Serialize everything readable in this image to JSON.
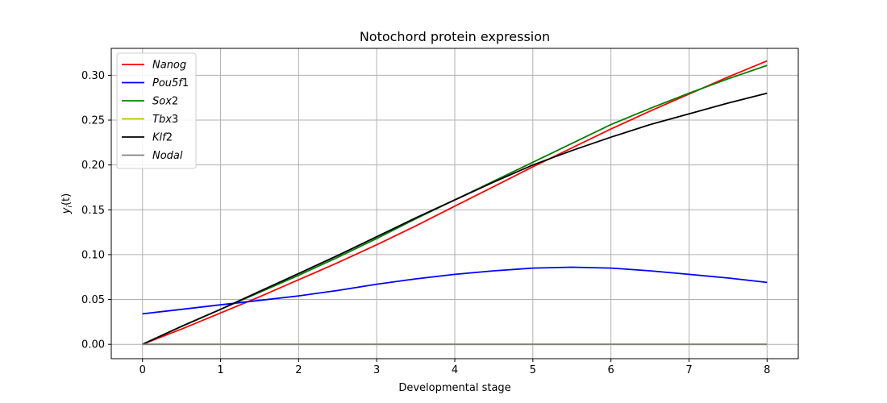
{
  "chart_data": {
    "type": "line",
    "title": "Notochord protein expression",
    "xlabel": "Developmental stage",
    "ylabel": "y_i(t)",
    "ylabel_main": "y",
    "ylabel_sub": "i",
    "ylabel_rest": "(t)",
    "xlim": [
      -0.4,
      8.4
    ],
    "ylim": [
      -0.016,
      0.33
    ],
    "xticks": [
      0,
      1,
      2,
      3,
      4,
      5,
      6,
      7,
      8
    ],
    "xtick_labels": [
      "0",
      "1",
      "2",
      "3",
      "4",
      "5",
      "6",
      "7",
      "8"
    ],
    "yticks": [
      0.0,
      0.05,
      0.1,
      0.15,
      0.2,
      0.25,
      0.3
    ],
    "ytick_labels": [
      "0.00",
      "0.05",
      "0.10",
      "0.15",
      "0.20",
      "0.25",
      "0.30"
    ],
    "grid": true,
    "legend_position": "top-left",
    "x": [
      0,
      0.5,
      1,
      1.5,
      2,
      2.5,
      3,
      3.5,
      4,
      4.5,
      5,
      5.5,
      6,
      6.5,
      7,
      7.5,
      8
    ],
    "series": [
      {
        "name": "Nanog",
        "name_main": "Nanog",
        "name_rest": "",
        "color": "#ff0000",
        "values": [
          0.0,
          0.017,
          0.035,
          0.053,
          0.072,
          0.091,
          0.111,
          0.132,
          0.154,
          0.176,
          0.198,
          0.219,
          0.24,
          0.26,
          0.279,
          0.298,
          0.316
        ]
      },
      {
        "name": "Pou5f1",
        "name_main": "Pou5f",
        "name_rest": "1",
        "color": "#0000ff",
        "values": [
          0.034,
          0.039,
          0.044,
          0.049,
          0.054,
          0.06,
          0.067,
          0.073,
          0.078,
          0.082,
          0.085,
          0.086,
          0.085,
          0.082,
          0.078,
          0.074,
          0.069
        ]
      },
      {
        "name": "Sox2",
        "name_main": "Sox",
        "name_rest": "2",
        "color": "#008000",
        "values": [
          0.0,
          0.02,
          0.039,
          0.058,
          0.077,
          0.097,
          0.118,
          0.14,
          0.161,
          0.182,
          0.203,
          0.224,
          0.245,
          0.263,
          0.28,
          0.296,
          0.311
        ]
      },
      {
        "name": "Tbx3",
        "name_main": "Tbx",
        "name_rest": "3",
        "color": "#bfbf00",
        "values": [
          0,
          0,
          0,
          0,
          0,
          0,
          0,
          0,
          0,
          0,
          0,
          0,
          0,
          0,
          0,
          0,
          0
        ]
      },
      {
        "name": "Klf2",
        "name_main": "Klf",
        "name_rest": "2",
        "color": "#000000",
        "values": [
          0.0,
          0.02,
          0.039,
          0.059,
          0.079,
          0.099,
          0.12,
          0.141,
          0.161,
          0.181,
          0.2,
          0.216,
          0.231,
          0.245,
          0.257,
          0.269,
          0.28
        ]
      },
      {
        "name": "Nodal",
        "name_main": "Nodal",
        "name_rest": "",
        "color": "#808080",
        "values": [
          0,
          0,
          0,
          0,
          0,
          0,
          0,
          0,
          0,
          0,
          0,
          0,
          0,
          0,
          0,
          0,
          0
        ]
      }
    ]
  }
}
